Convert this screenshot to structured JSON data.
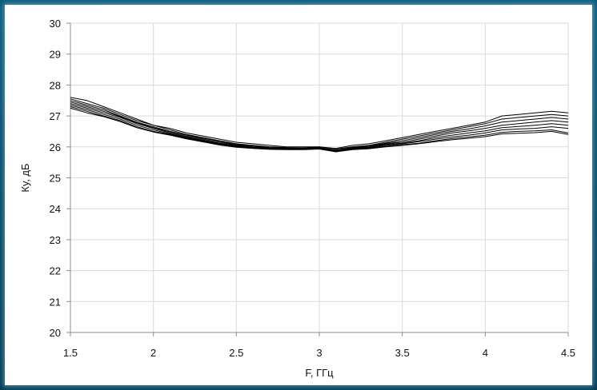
{
  "chart_data": {
    "type": "line",
    "title": "",
    "xlabel": "F, ГГц",
    "ylabel": "Ку, дБ",
    "xlim": [
      1.5,
      4.5
    ],
    "ylim": [
      20,
      30
    ],
    "x_ticks": [
      "1.5",
      "2",
      "2.5",
      "3",
      "3.5",
      "4",
      "4.5"
    ],
    "y_ticks": [
      "20",
      "21",
      "22",
      "23",
      "24",
      "25",
      "26",
      "27",
      "28",
      "29",
      "30"
    ],
    "grid": true,
    "legend": "none",
    "line_color": "#000000",
    "x": [
      1.5,
      1.6,
      1.7,
      1.8,
      1.9,
      2.0,
      2.1,
      2.2,
      2.3,
      2.4,
      2.5,
      2.6,
      2.7,
      2.8,
      2.9,
      3.0,
      3.1,
      3.2,
      3.3,
      3.4,
      3.5,
      3.6,
      3.7,
      3.8,
      3.9,
      4.0,
      4.1,
      4.2,
      4.3,
      4.4,
      4.5
    ],
    "series": [
      {
        "values": [
          27.6,
          27.5,
          27.3,
          27.1,
          26.9,
          26.7,
          26.6,
          26.45,
          26.35,
          26.25,
          26.15,
          26.1,
          26.05,
          26.0,
          26.0,
          26.0,
          25.95,
          26.05,
          26.1,
          26.2,
          26.3,
          26.4,
          26.5,
          26.6,
          26.7,
          26.8,
          27.0,
          27.05,
          27.1,
          27.15,
          27.1
        ]
      },
      {
        "values": [
          27.55,
          27.4,
          27.25,
          27.05,
          26.85,
          26.7,
          26.55,
          26.4,
          26.3,
          26.2,
          26.1,
          26.05,
          26.0,
          25.98,
          25.97,
          26.0,
          25.93,
          26.0,
          26.05,
          26.15,
          26.25,
          26.35,
          26.45,
          26.55,
          26.65,
          26.75,
          26.9,
          26.95,
          27.0,
          27.05,
          27.0
        ]
      },
      {
        "values": [
          27.5,
          27.35,
          27.2,
          27.0,
          26.8,
          26.65,
          26.5,
          26.38,
          26.28,
          26.18,
          26.08,
          26.03,
          25.98,
          25.96,
          25.96,
          25.98,
          25.9,
          25.98,
          26.03,
          26.12,
          26.2,
          26.3,
          26.4,
          26.5,
          26.58,
          26.68,
          26.8,
          26.85,
          26.9,
          26.95,
          26.9
        ]
      },
      {
        "values": [
          27.45,
          27.3,
          27.15,
          26.98,
          26.78,
          26.62,
          26.48,
          26.35,
          26.25,
          26.15,
          26.06,
          26.0,
          25.97,
          25.95,
          25.95,
          25.97,
          25.88,
          25.96,
          26.0,
          26.1,
          26.15,
          26.25,
          26.35,
          26.45,
          26.52,
          26.6,
          26.7,
          26.75,
          26.8,
          26.85,
          26.8
        ]
      },
      {
        "values": [
          27.4,
          27.25,
          27.1,
          26.95,
          26.75,
          26.6,
          26.45,
          26.32,
          26.22,
          26.12,
          26.04,
          25.99,
          25.95,
          25.94,
          25.94,
          25.96,
          25.87,
          25.95,
          25.99,
          26.08,
          26.12,
          26.2,
          26.3,
          26.38,
          26.45,
          26.52,
          26.62,
          26.66,
          26.7,
          26.75,
          26.7
        ]
      },
      {
        "values": [
          27.35,
          27.2,
          27.05,
          26.9,
          26.7,
          26.55,
          26.42,
          26.3,
          26.2,
          26.1,
          26.02,
          25.98,
          25.94,
          25.93,
          25.93,
          25.95,
          25.86,
          25.93,
          25.97,
          26.05,
          26.1,
          26.17,
          26.25,
          26.32,
          26.38,
          26.45,
          26.55,
          26.58,
          26.6,
          26.65,
          26.6
        ]
      },
      {
        "values": [
          27.3,
          27.15,
          27.0,
          26.85,
          26.65,
          26.5,
          26.4,
          26.28,
          26.18,
          26.08,
          26.0,
          25.96,
          25.93,
          25.92,
          25.92,
          25.94,
          25.85,
          25.92,
          25.95,
          26.02,
          26.07,
          26.12,
          26.2,
          26.27,
          26.32,
          26.38,
          26.47,
          26.5,
          26.52,
          26.55,
          26.45
        ]
      },
      {
        "values": [
          27.25,
          27.1,
          26.98,
          26.82,
          26.62,
          26.48,
          26.38,
          26.26,
          26.16,
          26.06,
          25.99,
          25.95,
          25.92,
          25.91,
          25.91,
          25.93,
          25.84,
          25.91,
          25.94,
          26.0,
          26.05,
          26.1,
          26.17,
          26.23,
          26.28,
          26.33,
          26.42,
          26.44,
          26.46,
          26.5,
          26.4
        ]
      }
    ]
  }
}
